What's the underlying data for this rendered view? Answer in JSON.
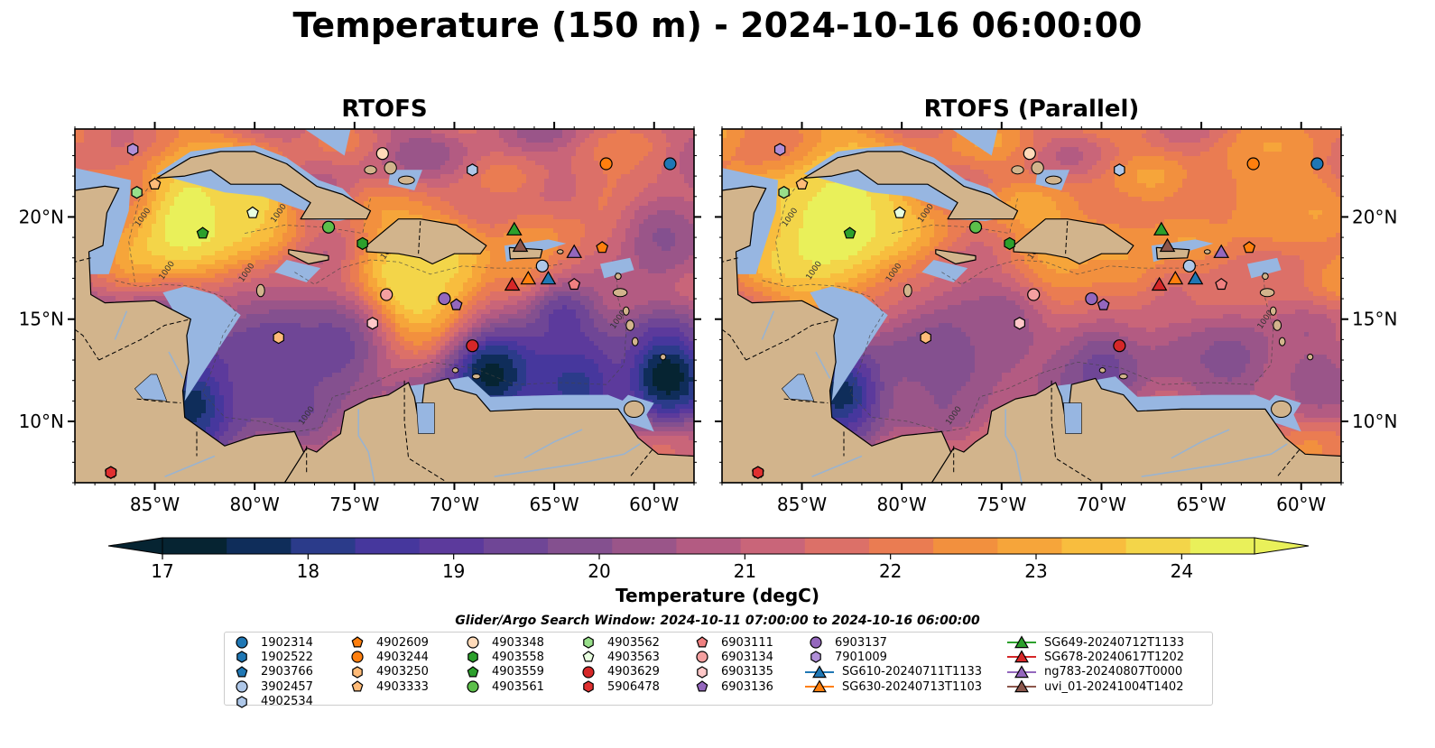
{
  "title": "Temperature (150 m) - 2024-10-16 06:00:00",
  "panels": [
    {
      "title": "RTOFS",
      "variant": "rtofs"
    },
    {
      "title": "RTOFS (Parallel)",
      "variant": "parallel"
    }
  ],
  "map": {
    "lon_range": [
      -89,
      -58
    ],
    "lat_range": [
      7,
      24.3
    ],
    "lon_ticks": [
      -85,
      -80,
      -75,
      -70,
      -65,
      -60
    ],
    "lon_tick_labels": [
      "85°W",
      "80°W",
      "75°W",
      "70°W",
      "65°W",
      "60°W"
    ],
    "lat_ticks": [
      10,
      15,
      20
    ],
    "lat_tick_labels": [
      "10°N",
      "15°N",
      "20°N"
    ],
    "land_color": "#d2b48c",
    "shelf_color": "#97b6e1",
    "contour_label": "1000"
  },
  "colorbar": {
    "label": "Temperature (degC)",
    "min": 17,
    "max": 24.5,
    "ticks": [
      17,
      18,
      19,
      20,
      21,
      22,
      23,
      24
    ],
    "tick_labels": [
      "17",
      "18",
      "19",
      "20",
      "21",
      "22",
      "23",
      "24"
    ],
    "colors": [
      "#062432",
      "#0f2d5a",
      "#2b3b8a",
      "#46379d",
      "#5c3a9c",
      "#6f4696",
      "#84508f",
      "#9a5589",
      "#b35b82",
      "#c96579",
      "#dc7068",
      "#ea7c52",
      "#f2903e",
      "#f6a53a",
      "#f8bd3e",
      "#f3d549",
      "#e9f05a"
    ],
    "extend": "both"
  },
  "search_window": "Glider/Argo Search Window: 2024-10-11 07:00:00 to 2024-10-16 06:00:00",
  "markers": [
    {
      "id": "1902314",
      "kind": "argo",
      "shape": "circle",
      "color": "#1f77b4",
      "lon": -59.2,
      "lat": 22.6
    },
    {
      "id": "1902522",
      "kind": "argo",
      "shape": "hexagon",
      "color": "#1f77b4",
      "lon": -87.2,
      "lat": 7.5
    },
    {
      "id": "2903766",
      "kind": "argo",
      "shape": "pentagon",
      "color": "#1f77b4",
      "lon": -87.2,
      "lat": 7.5
    },
    {
      "id": "3902457",
      "kind": "argo",
      "shape": "circle",
      "color": "#aec7e8",
      "lon": -65.6,
      "lat": 17.6
    },
    {
      "id": "4902534",
      "kind": "argo",
      "shape": "hexagon",
      "color": "#aec7e8",
      "lon": -69.1,
      "lat": 22.3
    },
    {
      "id": "4902609",
      "kind": "argo",
      "shape": "pentagon",
      "color": "#ff7f0e",
      "lon": -62.6,
      "lat": 18.5
    },
    {
      "id": "4903244",
      "kind": "argo",
      "shape": "circle",
      "color": "#ff7f0e",
      "lon": -62.4,
      "lat": 22.6
    },
    {
      "id": "4903250",
      "kind": "argo",
      "shape": "hexagon",
      "color": "#ffbb78",
      "lon": -78.8,
      "lat": 14.1
    },
    {
      "id": "4903333",
      "kind": "argo",
      "shape": "pentagon",
      "color": "#ffbb78",
      "lon": -85.0,
      "lat": 21.6
    },
    {
      "id": "4903348",
      "kind": "argo",
      "shape": "circle",
      "color": "#ffdab9",
      "lon": -73.6,
      "lat": 23.1
    },
    {
      "id": "4903558",
      "kind": "argo",
      "shape": "hexagon",
      "color": "#2ca02c",
      "lon": -74.6,
      "lat": 18.7
    },
    {
      "id": "4903559",
      "kind": "argo",
      "shape": "pentagon",
      "color": "#2ca02c",
      "lon": -82.6,
      "lat": 19.2
    },
    {
      "id": "4903561",
      "kind": "argo",
      "shape": "circle",
      "color": "#5cbf4a",
      "lon": -76.3,
      "lat": 19.5
    },
    {
      "id": "4903562",
      "kind": "argo",
      "shape": "hexagon",
      "color": "#98df8a",
      "lon": -85.9,
      "lat": 21.2
    },
    {
      "id": "4903563",
      "kind": "argo",
      "shape": "pentagon",
      "color": "#e8ffe0",
      "lon": -80.1,
      "lat": 20.2
    },
    {
      "id": "4903629",
      "kind": "argo",
      "shape": "circle",
      "color": "#d62728",
      "lon": -69.1,
      "lat": 13.7
    },
    {
      "id": "5906478",
      "kind": "argo",
      "shape": "hexagon",
      "color": "#e03030",
      "lon": -87.2,
      "lat": 7.5
    },
    {
      "id": "6903111",
      "kind": "argo",
      "shape": "pentagon",
      "color": "#f08080",
      "lon": -64.0,
      "lat": 16.7
    },
    {
      "id": "6903134",
      "kind": "argo",
      "shape": "circle",
      "color": "#f4a0a0",
      "lon": -73.4,
      "lat": 16.2
    },
    {
      "id": "6903135",
      "kind": "argo",
      "shape": "hexagon",
      "color": "#ffc8c8",
      "lon": -74.1,
      "lat": 14.8
    },
    {
      "id": "6903136",
      "kind": "argo",
      "shape": "pentagon",
      "color": "#9467bd",
      "lon": -69.9,
      "lat": 15.7
    },
    {
      "id": "6903137",
      "kind": "argo",
      "shape": "circle",
      "color": "#9467bd",
      "lon": -70.5,
      "lat": 16.0
    },
    {
      "id": "7901009",
      "kind": "argo",
      "shape": "hexagon",
      "color": "#b08fd8",
      "lon": -86.1,
      "lat": 23.3
    },
    {
      "id": "SG610-20240711T1133",
      "kind": "glider",
      "shape": "triangle",
      "color": "#1f77b4",
      "lon": -65.3,
      "lat": 17.0
    },
    {
      "id": "SG630-20240713T1103",
      "kind": "glider",
      "shape": "triangle",
      "color": "#ff7f0e",
      "lon": -66.3,
      "lat": 17.0
    },
    {
      "id": "SG649-20240712T1133",
      "kind": "glider",
      "shape": "triangle",
      "color": "#2ca02c",
      "lon": -67.0,
      "lat": 19.4
    },
    {
      "id": "SG678-20240617T1202",
      "kind": "glider",
      "shape": "triangle",
      "color": "#d62728",
      "lon": -67.1,
      "lat": 16.7
    },
    {
      "id": "ng783-20240807T0000",
      "kind": "glider",
      "shape": "triangle",
      "color": "#9467bd",
      "lon": -64.0,
      "lat": 18.3
    },
    {
      "id": "uvi_01-20241004T1402",
      "kind": "glider",
      "shape": "triangle",
      "color": "#8c564b",
      "lon": -66.7,
      "lat": 18.6
    }
  ]
}
